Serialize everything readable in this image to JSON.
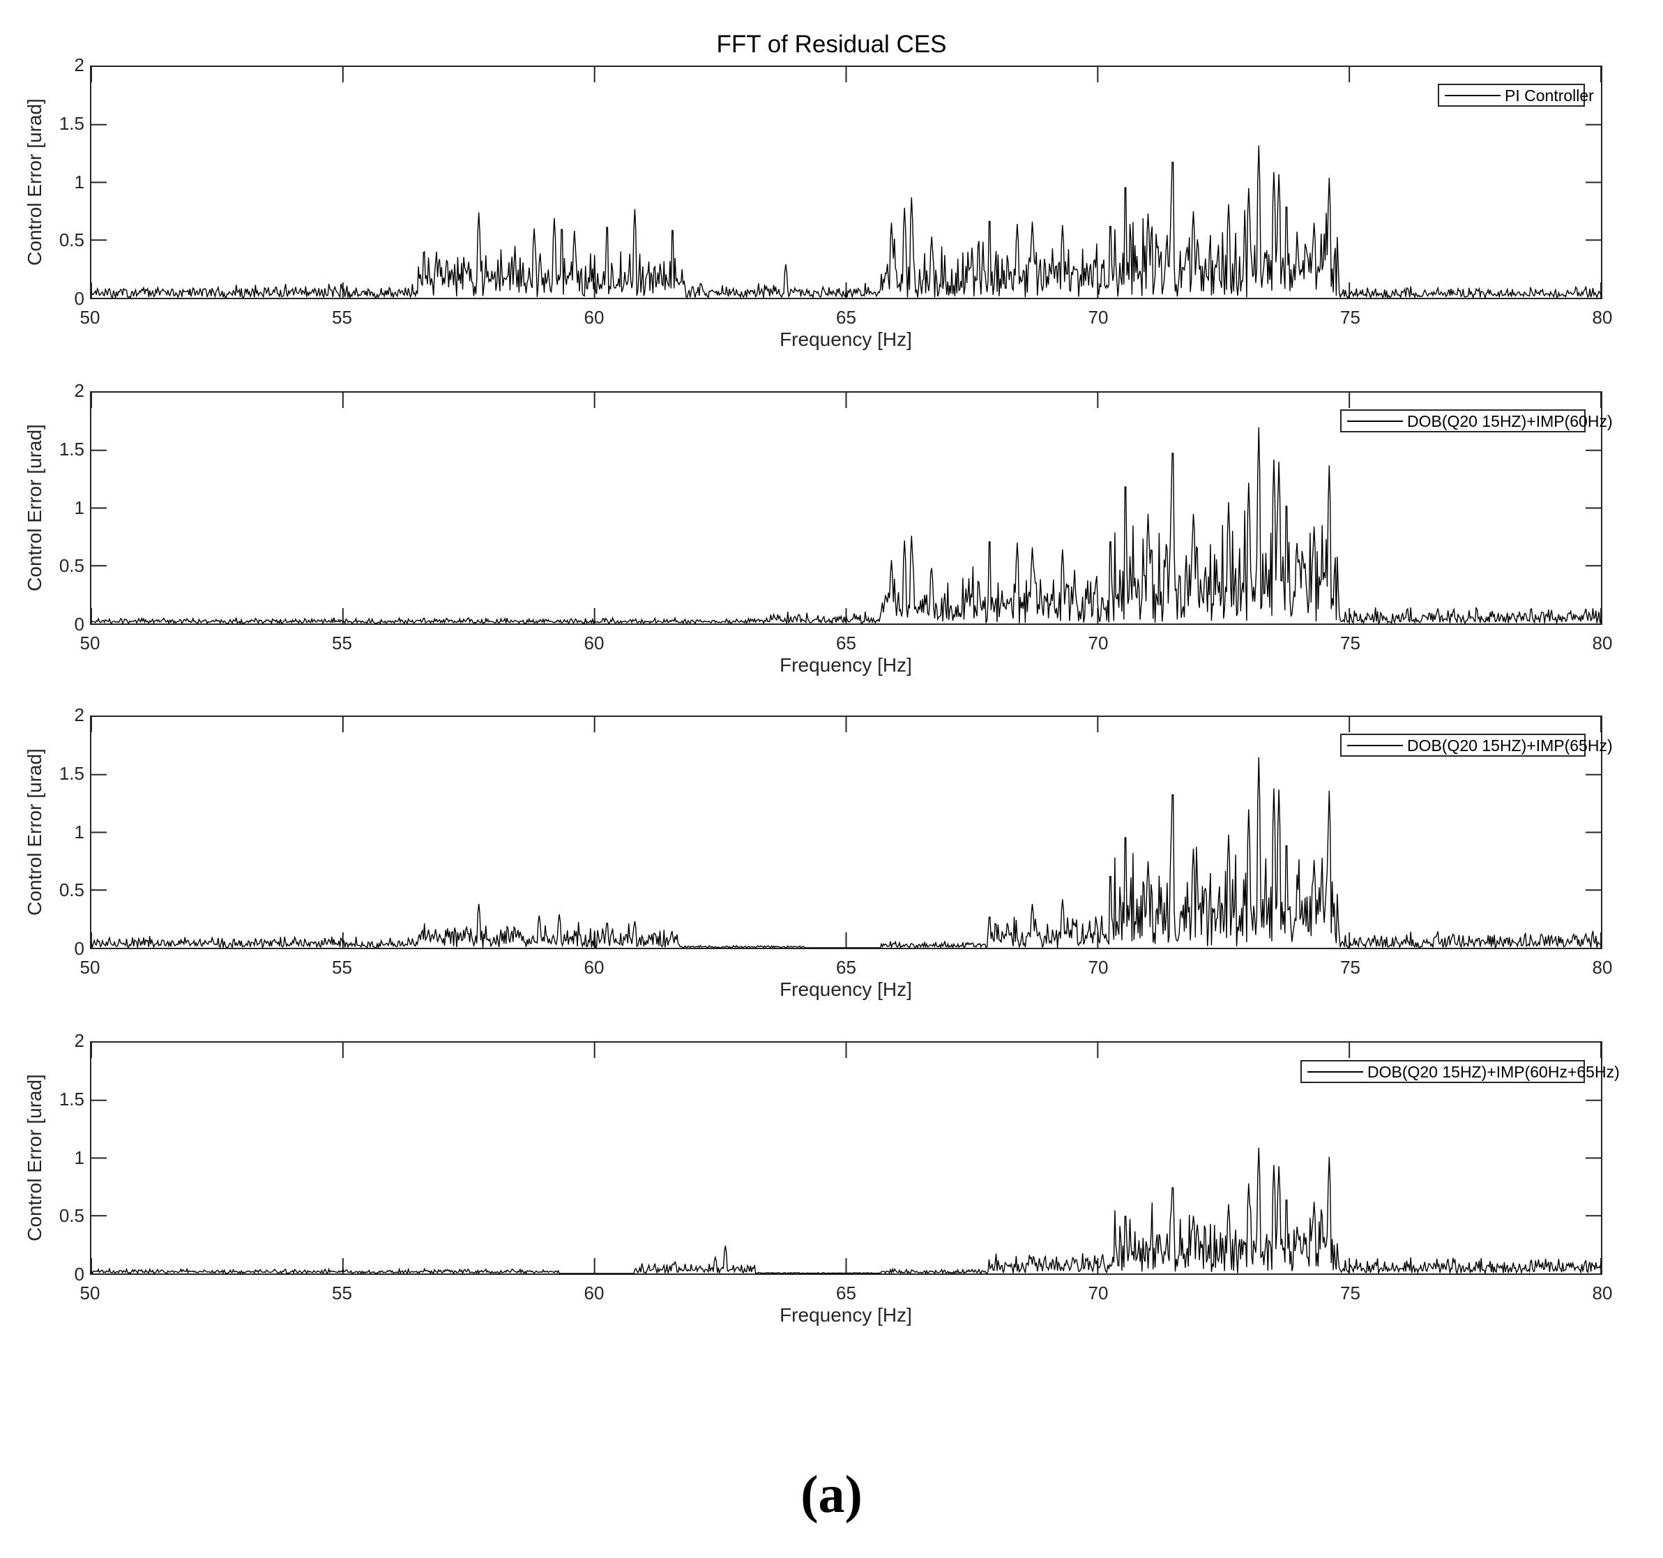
{
  "figure": {
    "title": "FFT of Residual CES",
    "caption": "(a)"
  },
  "axes_common": {
    "xlabel": "Frequency [Hz]",
    "ylabel": "Control Error [urad]",
    "xticks": [
      "50",
      "55",
      "60",
      "65",
      "70",
      "75",
      "80"
    ],
    "yticks": [
      "0",
      "0.5",
      "1",
      "1.5",
      "2"
    ]
  },
  "panels": [
    {
      "legend": "PI Controller"
    },
    {
      "legend": "DOB(Q20 15HZ)+IMP(60Hz)"
    },
    {
      "legend": "DOB(Q20 15HZ)+IMP(65Hz)"
    },
    {
      "legend": "DOB(Q20 15HZ)+IMP(60Hz+65Hz)"
    }
  ],
  "chart_data": [
    {
      "type": "line",
      "title": "FFT of Residual CES",
      "xlabel": "Frequency [Hz]",
      "ylabel": "Control Error [urad]",
      "xlim": [
        50,
        80
      ],
      "ylim": [
        0,
        2
      ],
      "xticks": [
        50,
        55,
        60,
        65,
        70,
        75,
        80
      ],
      "yticks": [
        0,
        0.5,
        1,
        1.5,
        2
      ],
      "grid": false,
      "legend_position": "upper right",
      "series": [
        {
          "name": "PI Controller",
          "color": "#000000",
          "bands": [
            [
              50,
              56.5,
              0.12
            ],
            [
              56.5,
              61.8,
              0.45
            ],
            [
              61.8,
              65.7,
              0.13
            ],
            [
              65.7,
              70.3,
              0.5
            ],
            [
              70.3,
              74.8,
              0.75
            ],
            [
              74.8,
              80,
              0.1
            ]
          ],
          "peaks": [
            [
              57.7,
              0.74
            ],
            [
              58.8,
              0.6
            ],
            [
              59.2,
              0.69
            ],
            [
              59.35,
              0.67
            ],
            [
              59.6,
              0.58
            ],
            [
              60.25,
              0.69
            ],
            [
              60.8,
              0.77
            ],
            [
              61.55,
              0.66
            ],
            [
              63.8,
              0.29
            ],
            [
              65.9,
              0.65
            ],
            [
              66.16,
              0.78
            ],
            [
              66.3,
              0.87
            ],
            [
              66.7,
              0.53
            ],
            [
              67.85,
              0.75
            ],
            [
              68.4,
              0.64
            ],
            [
              68.7,
              0.66
            ],
            [
              69.3,
              0.63
            ],
            [
              70.25,
              0.7
            ],
            [
              70.55,
              1.08
            ],
            [
              71.0,
              0.73
            ],
            [
              71.49,
              1.33
            ],
            [
              71.9,
              0.75
            ],
            [
              72.6,
              0.81
            ],
            [
              73.0,
              0.95
            ],
            [
              73.2,
              1.32
            ],
            [
              73.5,
              1.09
            ],
            [
              73.6,
              1.07
            ],
            [
              73.75,
              0.89
            ],
            [
              74.3,
              0.65
            ],
            [
              74.6,
              1.04
            ]
          ]
        }
      ]
    },
    {
      "type": "line",
      "xlabel": "Frequency [Hz]",
      "ylabel": "Control Error [urad]",
      "xlim": [
        50,
        80
      ],
      "ylim": [
        0,
        2
      ],
      "series": [
        {
          "name": "DOB(Q20 15HZ)+IMP(60Hz)",
          "color": "#000000",
          "bands": [
            [
              50,
              63.5,
              0.05
            ],
            [
              63.5,
              65.7,
              0.1
            ],
            [
              65.7,
              70.3,
              0.5
            ],
            [
              70.3,
              74.8,
              0.95
            ],
            [
              74.8,
              80,
              0.14
            ]
          ],
          "peaks": [
            [
              65.9,
              0.55
            ],
            [
              66.16,
              0.72
            ],
            [
              66.3,
              0.76
            ],
            [
              66.7,
              0.48
            ],
            [
              67.85,
              0.8
            ],
            [
              68.4,
              0.7
            ],
            [
              68.7,
              0.66
            ],
            [
              69.3,
              0.64
            ],
            [
              70.25,
              0.8
            ],
            [
              70.55,
              1.34
            ],
            [
              71.0,
              0.95
            ],
            [
              71.49,
              1.67
            ],
            [
              71.9,
              0.95
            ],
            [
              72.6,
              1.05
            ],
            [
              73.0,
              1.22
            ],
            [
              73.2,
              1.7
            ],
            [
              73.5,
              1.42
            ],
            [
              73.6,
              1.4
            ],
            [
              73.75,
              1.15
            ],
            [
              74.3,
              0.84
            ],
            [
              74.6,
              1.37
            ]
          ]
        }
      ]
    },
    {
      "type": "line",
      "xlabel": "Frequency [Hz]",
      "ylabel": "Control Error [urad]",
      "xlim": [
        50,
        80
      ],
      "ylim": [
        0,
        2
      ],
      "series": [
        {
          "name": "DOB(Q20 15HZ)+IMP(65Hz)",
          "color": "#000000",
          "bands": [
            [
              50,
              56.5,
              0.1
            ],
            [
              56.5,
              61.7,
              0.22
            ],
            [
              61.7,
              64.2,
              0.02
            ],
            [
              64.2,
              65.7,
              0.0
            ],
            [
              65.7,
              67.8,
              0.06
            ],
            [
              67.8,
              70.3,
              0.3
            ],
            [
              70.3,
              74.8,
              0.9
            ],
            [
              74.8,
              80,
              0.14
            ]
          ],
          "peaks": [
            [
              57.7,
              0.38
            ],
            [
              58.9,
              0.28
            ],
            [
              59.3,
              0.29
            ],
            [
              60.25,
              0.24
            ],
            [
              60.8,
              0.23
            ],
            [
              67.85,
              0.3
            ],
            [
              68.7,
              0.38
            ],
            [
              69.3,
              0.42
            ],
            [
              70.25,
              0.7
            ],
            [
              70.55,
              1.08
            ],
            [
              71.0,
              0.75
            ],
            [
              71.49,
              1.5
            ],
            [
              71.9,
              0.86
            ],
            [
              72.6,
              0.98
            ],
            [
              73.0,
              1.2
            ],
            [
              73.2,
              1.65
            ],
            [
              73.5,
              1.38
            ],
            [
              73.6,
              1.37
            ],
            [
              73.75,
              1.0
            ],
            [
              74.3,
              0.76
            ],
            [
              74.6,
              1.36
            ]
          ]
        }
      ]
    },
    {
      "type": "line",
      "xlabel": "Frequency [Hz]",
      "ylabel": "Control Error [urad]",
      "xlim": [
        50,
        80
      ],
      "ylim": [
        0,
        2
      ],
      "series": [
        {
          "name": "DOB(Q20 15HZ)+IMP(60Hz+65Hz)",
          "color": "#000000",
          "bands": [
            [
              50,
              59.3,
              0.04
            ],
            [
              59.3,
              60.8,
              0.0
            ],
            [
              60.8,
              63.2,
              0.1
            ],
            [
              63.2,
              65.7,
              0.01
            ],
            [
              65.7,
              67.8,
              0.04
            ],
            [
              67.8,
              70.3,
              0.18
            ],
            [
              70.3,
              74.8,
              0.6
            ],
            [
              74.8,
              80,
              0.14
            ]
          ],
          "peaks": [
            [
              62.6,
              0.24
            ],
            [
              62.4,
              0.14
            ],
            [
              61.6,
              0.1
            ],
            [
              70.55,
              0.56
            ],
            [
              71.49,
              0.84
            ],
            [
              71.9,
              0.5
            ],
            [
              72.6,
              0.6
            ],
            [
              73.0,
              0.78
            ],
            [
              73.2,
              1.09
            ],
            [
              73.5,
              0.94
            ],
            [
              73.6,
              0.93
            ],
            [
              73.75,
              0.72
            ],
            [
              74.3,
              0.62
            ],
            [
              74.6,
              1.01
            ]
          ]
        }
      ]
    }
  ]
}
